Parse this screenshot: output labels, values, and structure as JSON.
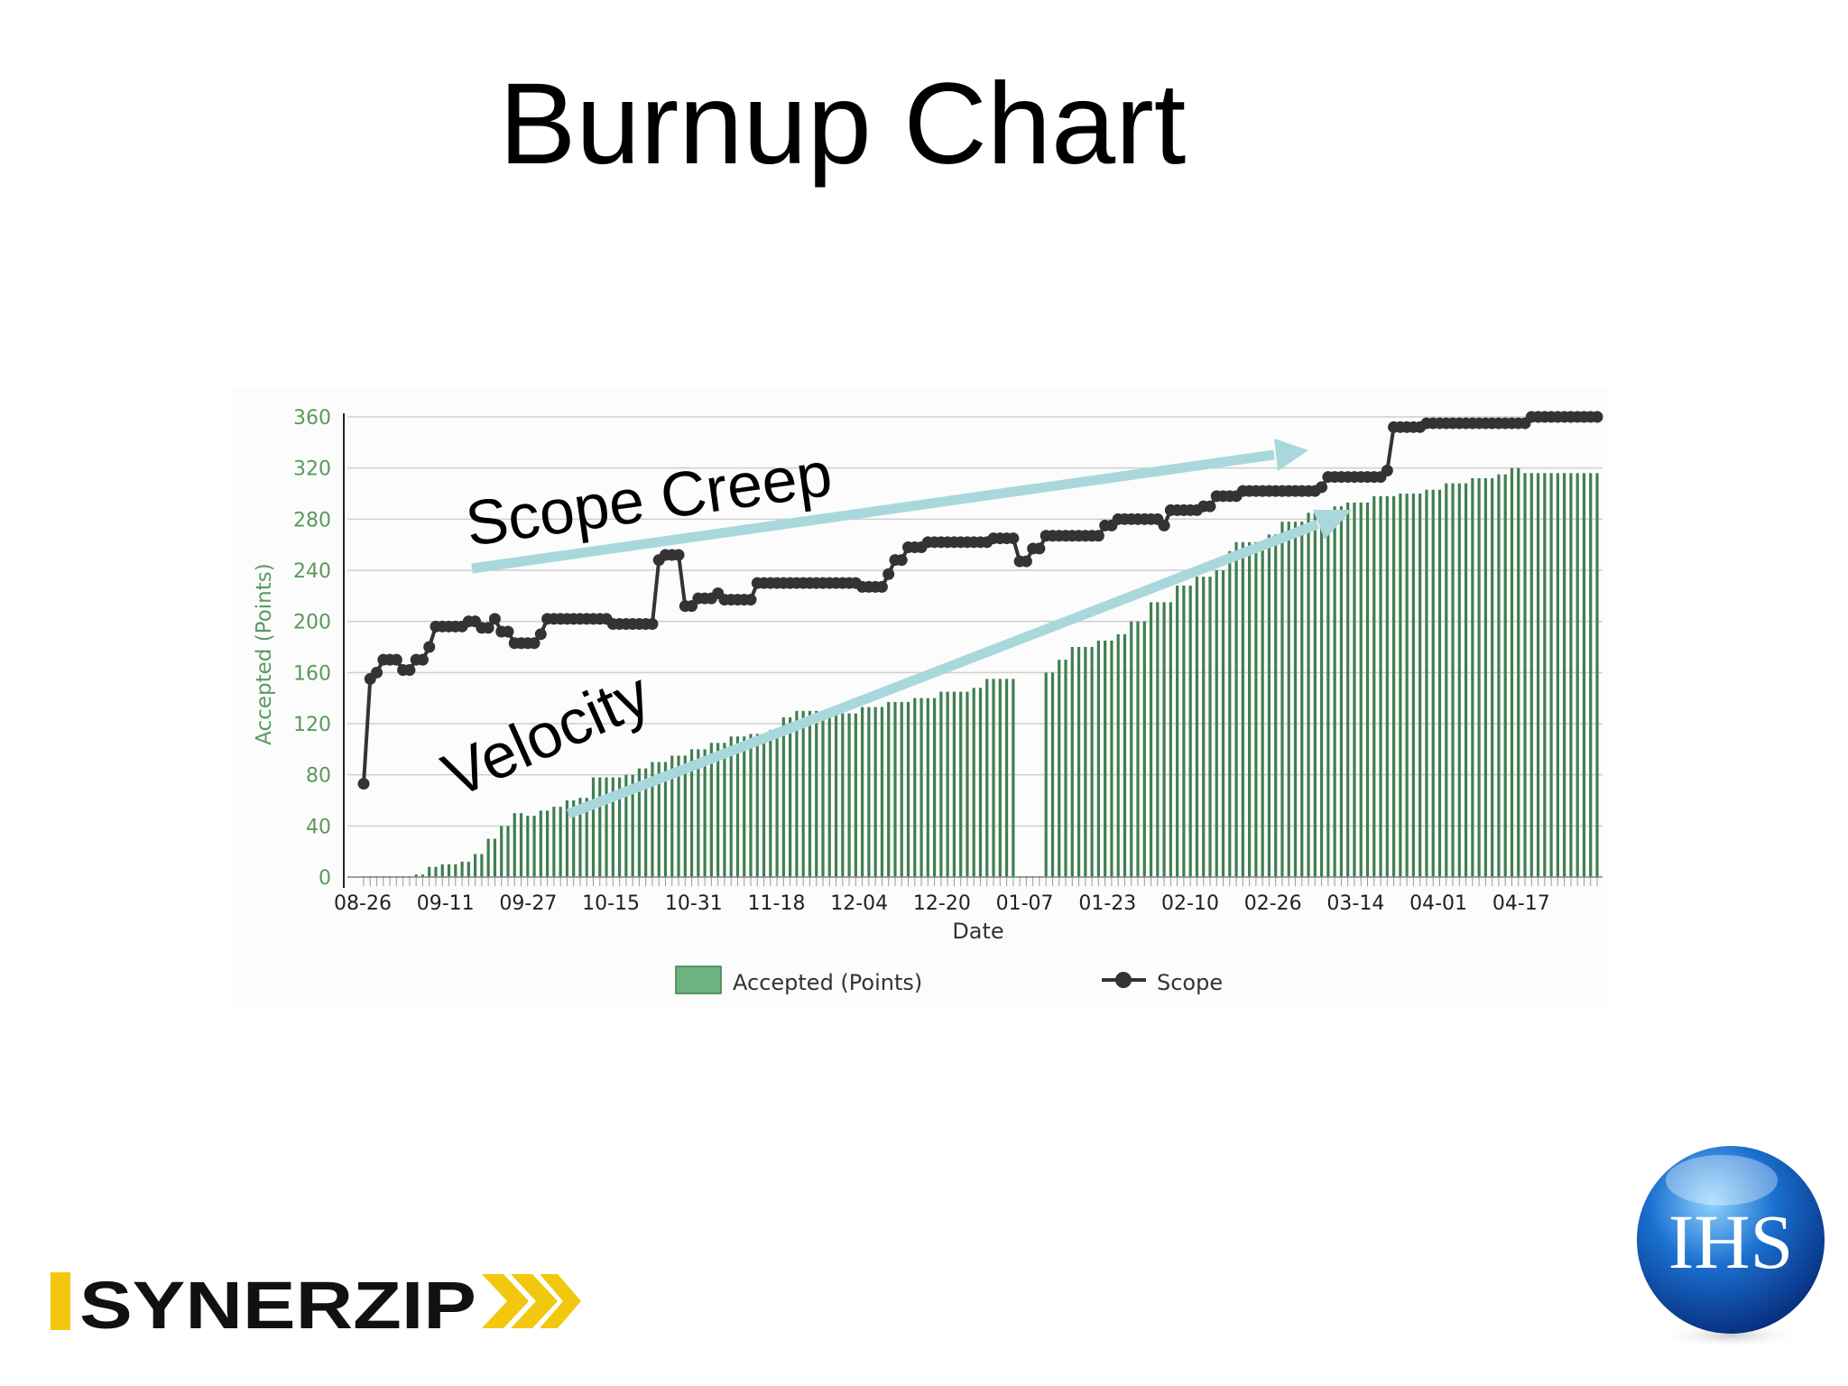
{
  "slide": {
    "title": "Burnup Chart"
  },
  "annotations": {
    "scope_creep": "Scope Creep",
    "velocity": "Velocity"
  },
  "logos": {
    "synerzip": "SYNERZIP",
    "ihs": "IHS"
  },
  "colors": {
    "bars": "#3f7f4f",
    "legend_bar": "#6db37f",
    "scope_line": "#333333",
    "arrows": "#a9d8dc",
    "axis_text": "#5a9a5a"
  },
  "chart_data": {
    "type": "bar",
    "xlabel": "Date",
    "ylabel": "Accepted (Points)",
    "ylim": [
      0,
      360
    ],
    "yticks": [
      0,
      40,
      80,
      120,
      160,
      200,
      240,
      280,
      320,
      360
    ],
    "xticks": [
      "08-26",
      "09-11",
      "09-27",
      "10-15",
      "10-31",
      "11-18",
      "12-04",
      "12-20",
      "01-07",
      "01-23",
      "02-10",
      "02-26",
      "03-14",
      "04-01",
      "04-17"
    ],
    "legend": {
      "placement": "bottom",
      "items": [
        "Accepted (Points)",
        "Scope"
      ]
    },
    "grid": true,
    "series": [
      {
        "name": "Accepted (Points)",
        "type": "bar",
        "points": [
          [
            0,
            0
          ],
          [
            8,
            2
          ],
          [
            10,
            8
          ],
          [
            12,
            10
          ],
          [
            15,
            12
          ],
          [
            17,
            18
          ],
          [
            19,
            30
          ],
          [
            21,
            40
          ],
          [
            23,
            50
          ],
          [
            25,
            48
          ],
          [
            27,
            52
          ],
          [
            29,
            55
          ],
          [
            31,
            60
          ],
          [
            33,
            62
          ],
          [
            35,
            78
          ],
          [
            40,
            80
          ],
          [
            42,
            85
          ],
          [
            44,
            90
          ],
          [
            47,
            95
          ],
          [
            50,
            100
          ],
          [
            53,
            105
          ],
          [
            56,
            110
          ],
          [
            59,
            112
          ],
          [
            62,
            115
          ],
          [
            64,
            125
          ],
          [
            66,
            130
          ],
          [
            70,
            130
          ],
          [
            72,
            128
          ],
          [
            76,
            133
          ],
          [
            80,
            137
          ],
          [
            84,
            140
          ],
          [
            88,
            145
          ],
          [
            93,
            148
          ],
          [
            95,
            155
          ],
          [
            99,
            155
          ],
          [
            100,
            0
          ],
          [
            103,
            0
          ],
          [
            104,
            160
          ],
          [
            106,
            170
          ],
          [
            108,
            180
          ],
          [
            112,
            185
          ],
          [
            115,
            190
          ],
          [
            117,
            200
          ],
          [
            120,
            215
          ],
          [
            124,
            228
          ],
          [
            127,
            235
          ],
          [
            130,
            240
          ],
          [
            132,
            255
          ],
          [
            133,
            262
          ],
          [
            138,
            268
          ],
          [
            140,
            278
          ],
          [
            144,
            285
          ],
          [
            148,
            290
          ],
          [
            150,
            293
          ],
          [
            154,
            298
          ],
          [
            158,
            300
          ],
          [
            162,
            303
          ],
          [
            165,
            308
          ],
          [
            169,
            312
          ],
          [
            173,
            315
          ],
          [
            175,
            320
          ],
          [
            177,
            316
          ],
          [
            180,
            316
          ],
          [
            188,
            316
          ]
        ]
      },
      {
        "name": "Scope",
        "type": "line",
        "points": [
          [
            0,
            73
          ],
          [
            1,
            155
          ],
          [
            2,
            160
          ],
          [
            3,
            170
          ],
          [
            6,
            162
          ],
          [
            8,
            170
          ],
          [
            10,
            180
          ],
          [
            11,
            196
          ],
          [
            16,
            200
          ],
          [
            18,
            195
          ],
          [
            20,
            202
          ],
          [
            21,
            192
          ],
          [
            23,
            183
          ],
          [
            27,
            190
          ],
          [
            28,
            202
          ],
          [
            38,
            198
          ],
          [
            44,
            198
          ],
          [
            45,
            248
          ],
          [
            46,
            252
          ],
          [
            49,
            212
          ],
          [
            51,
            218
          ],
          [
            54,
            222
          ],
          [
            55,
            217
          ],
          [
            60,
            230
          ],
          [
            76,
            227
          ],
          [
            80,
            237
          ],
          [
            81,
            248
          ],
          [
            83,
            258
          ],
          [
            86,
            262
          ],
          [
            94,
            262
          ],
          [
            96,
            265
          ],
          [
            99,
            265
          ],
          [
            100,
            247
          ],
          [
            102,
            257
          ],
          [
            104,
            267
          ],
          [
            111,
            267
          ],
          [
            113,
            275
          ],
          [
            115,
            280
          ],
          [
            122,
            275
          ],
          [
            123,
            287
          ],
          [
            128,
            290
          ],
          [
            130,
            298
          ],
          [
            134,
            302
          ],
          [
            146,
            305
          ],
          [
            147,
            313
          ],
          [
            155,
            313
          ],
          [
            156,
            318
          ],
          [
            157,
            352
          ],
          [
            160,
            352
          ],
          [
            162,
            355
          ],
          [
            175,
            355
          ],
          [
            178,
            360
          ],
          [
            188,
            360
          ]
        ]
      }
    ],
    "x_range": [
      0,
      188
    ]
  }
}
